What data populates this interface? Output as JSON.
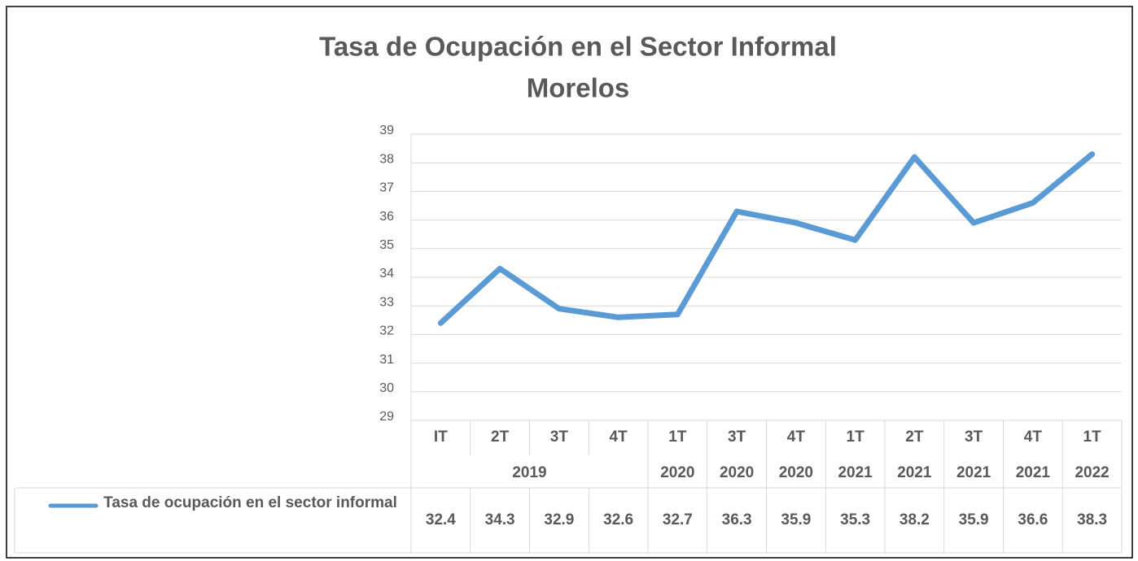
{
  "chart_data": {
    "type": "line",
    "title": "Tasa de Ocupación en el Sector Informal",
    "subtitle": "Morelos",
    "categories": [
      "IT",
      "2T",
      "3T",
      "4T",
      "1T",
      "3T",
      "4T",
      "1T",
      "2T",
      "3T",
      "4T",
      "1T"
    ],
    "years": [
      "2019",
      null,
      null,
      null,
      "2020",
      "2020",
      "2020",
      "2021",
      "2021",
      "2021",
      "2021",
      "2022"
    ],
    "series": [
      {
        "name": "Tasa de ocupación en el sector informal",
        "color": "#5b9bd5",
        "values": [
          32.4,
          34.3,
          32.9,
          32.6,
          32.7,
          36.3,
          35.9,
          35.3,
          38.2,
          35.9,
          36.6,
          38.3
        ]
      }
    ],
    "ylim": [
      29,
      39
    ],
    "yticks": [
      29,
      30,
      31,
      32,
      33,
      34,
      35,
      36,
      37,
      38,
      39
    ],
    "grid": true
  }
}
